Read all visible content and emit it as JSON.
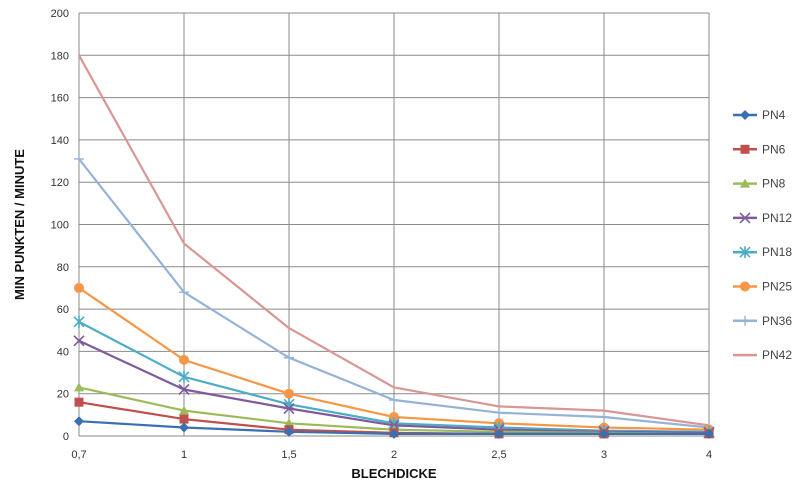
{
  "chart_data": {
    "type": "line",
    "categories": [
      "0,7",
      "1",
      "1,5",
      "2",
      "2,5",
      "3",
      "4"
    ],
    "xlabel": "BLECHDICKE",
    "ylabel": "MIN PUNKTEN / MINUTE",
    "ylim": [
      0,
      200
    ],
    "yticks": [
      "0",
      "20",
      "40",
      "60",
      "80",
      "100",
      "120",
      "140",
      "160",
      "180",
      "200"
    ],
    "grid": "vertical and horizontal",
    "legend_position": "right",
    "series": [
      {
        "name": "PN4",
        "color": "#3a6fb0",
        "marker": "diamond",
        "values": [
          7,
          4,
          2,
          1,
          1,
          1,
          1
        ]
      },
      {
        "name": "PN6",
        "color": "#c0504d",
        "marker": "square",
        "values": [
          16,
          8,
          3,
          1.5,
          1,
          1,
          1
        ]
      },
      {
        "name": "PN8",
        "color": "#9bbb59",
        "marker": "triangle",
        "values": [
          23,
          12,
          6,
          3,
          2,
          1.5,
          1
        ]
      },
      {
        "name": "PN12",
        "color": "#7f5a9e",
        "marker": "x",
        "values": [
          45,
          22,
          13,
          5,
          3,
          2,
          1.5
        ]
      },
      {
        "name": "PN18",
        "color": "#4bacc6",
        "marker": "star",
        "values": [
          54,
          28,
          15,
          6,
          4,
          2.5,
          2
        ]
      },
      {
        "name": "PN25",
        "color": "#f79646",
        "marker": "circle",
        "values": [
          70,
          36,
          20,
          9,
          6,
          4,
          3
        ]
      },
      {
        "name": "PN36",
        "color": "#95b3d7",
        "marker": "plus",
        "values": [
          131,
          68,
          37,
          17,
          11,
          9,
          4
        ]
      },
      {
        "name": "PN42",
        "color": "#d99694",
        "marker": "none",
        "values": [
          180,
          91,
          51,
          23,
          14,
          12,
          5
        ]
      }
    ]
  }
}
